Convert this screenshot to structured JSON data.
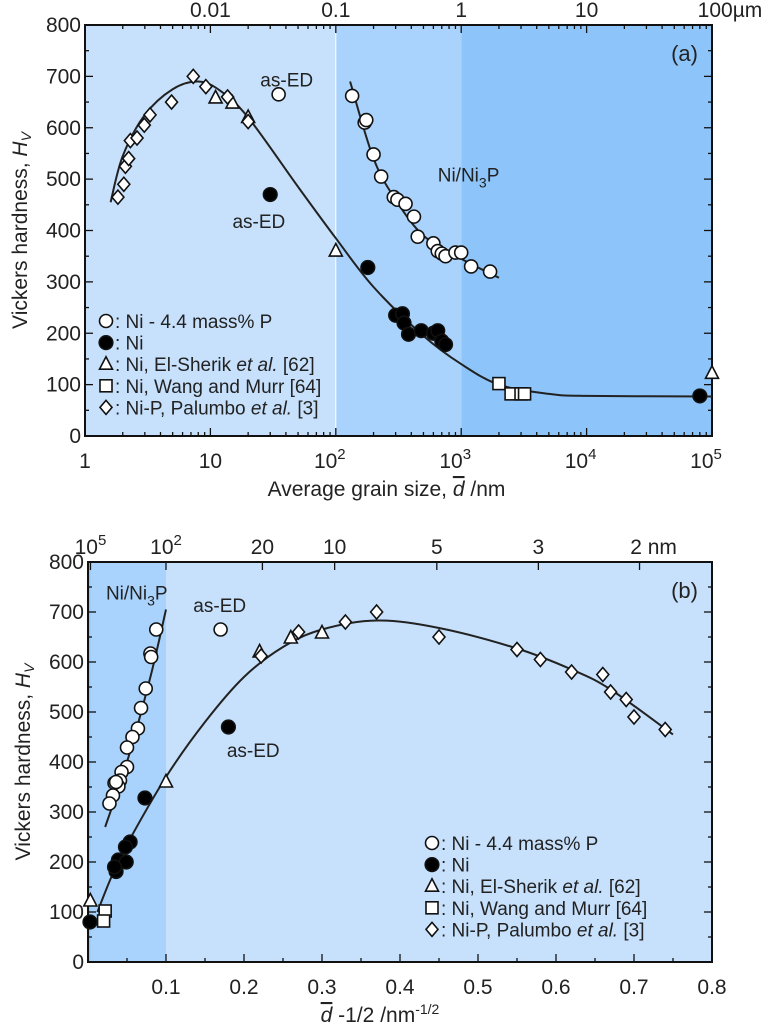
{
  "chart_data": [
    {
      "type": "scatter",
      "panel_label": "(a)",
      "xscale": "log",
      "xlim": [
        1,
        100000
      ],
      "ylim": [
        0,
        800
      ],
      "xlabel": {
        "pre": "Average grain size, ",
        "var": "d",
        "post": " /nm"
      },
      "ylabel": {
        "pre": "Vickers hardness, ",
        "var": "H",
        "sub": "V"
      },
      "x_ticks": [
        {
          "v": 1,
          "label": "1"
        },
        {
          "v": 10,
          "label": "10"
        },
        {
          "v": 100,
          "label": "10",
          "sup": "2"
        },
        {
          "v": 1000,
          "label": "10",
          "sup": "3"
        },
        {
          "v": 10000,
          "label": "10",
          "sup": "4"
        },
        {
          "v": 100000,
          "label": "10",
          "sup": "5"
        }
      ],
      "top_ticks": [
        {
          "v": 10,
          "label": "0.01"
        },
        {
          "v": 100,
          "label": "0.1"
        },
        {
          "v": 1000,
          "label": "1"
        },
        {
          "v": 10000,
          "label": "10"
        },
        {
          "v": 100000,
          "label": "100µm"
        }
      ],
      "y_ticks": [
        0,
        100,
        200,
        300,
        400,
        500,
        600,
        700,
        800
      ],
      "regions": [
        {
          "from": 1,
          "to": 100,
          "color": "#c7e1fc"
        },
        {
          "from": 100,
          "to": 1000,
          "color": "#a9d3fc"
        },
        {
          "from": 1000,
          "to": 100000,
          "color": "#8dc5fb"
        }
      ],
      "series": [
        {
          "name": "Ni - 4.4 mass% P",
          "marker": "open-circle",
          "points": [
            [
              35,
              665
            ],
            [
              135,
              662
            ],
            [
              170,
              610
            ],
            [
              175,
              615
            ],
            [
              200,
              548
            ],
            [
              230,
              505
            ],
            [
              290,
              465
            ],
            [
              310,
              460
            ],
            [
              360,
              452
            ],
            [
              420,
              427
            ],
            [
              450,
              388
            ],
            [
              600,
              375
            ],
            [
              650,
              360
            ],
            [
              700,
              355
            ],
            [
              750,
              350
            ],
            [
              900,
              357
            ],
            [
              1000,
              357
            ],
            [
              1200,
              330
            ],
            [
              1700,
              320
            ]
          ]
        },
        {
          "name": "Ni",
          "marker": "filled-circle",
          "points": [
            [
              30,
              470
            ],
            [
              180,
              328
            ],
            [
              300,
              235
            ],
            [
              340,
              238
            ],
            [
              350,
              220
            ],
            [
              380,
              198
            ],
            [
              480,
              205
            ],
            [
              600,
              200
            ],
            [
              650,
              205
            ],
            [
              700,
              185
            ],
            [
              750,
              178
            ],
            [
              80000,
              78
            ]
          ]
        },
        {
          "name": "Ni, El-Sherik et al. [62]",
          "marker": "triangle",
          "points": [
            [
              11,
              658
            ],
            [
              15,
              648
            ],
            [
              20,
              620
            ],
            [
              100,
              360
            ],
            [
              100000,
              122
            ]
          ]
        },
        {
          "name": "Ni, Wang and Murr [64]",
          "marker": "square",
          "points": [
            [
              2000,
              102
            ],
            [
              2500,
              82
            ],
            [
              3000,
              82
            ],
            [
              3200,
              82
            ]
          ]
        },
        {
          "name": "Ni-P, Palumbo et al. [3]",
          "marker": "diamond",
          "points": [
            [
              1.83,
              465
            ],
            [
              2.04,
              490
            ],
            [
              2.1,
              525
            ],
            [
              2.23,
              540
            ],
            [
              2.3,
              575
            ],
            [
              2.6,
              580
            ],
            [
              2.97,
              605
            ],
            [
              3.3,
              625
            ],
            [
              4.9,
              650
            ],
            [
              7.3,
              700
            ],
            [
              9.2,
              680
            ],
            [
              13.7,
              660
            ],
            [
              20,
              612
            ]
          ]
        }
      ],
      "curves": [
        {
          "name": "hall-petch-fit",
          "points": [
            [
              1.6,
              455
            ],
            [
              2,
              545
            ],
            [
              3,
              625
            ],
            [
              5,
              675
            ],
            [
              8,
              690
            ],
            [
              12,
              672
            ],
            [
              20,
              620
            ],
            [
              50,
              485
            ],
            [
              100,
              385
            ],
            [
              200,
              290
            ],
            [
              500,
              195
            ],
            [
              1000,
              140
            ],
            [
              2000,
              100
            ],
            [
              5000,
              82
            ],
            [
              10000,
              78
            ],
            [
              100000,
              77
            ]
          ]
        },
        {
          "name": "ni-ni3p-fit",
          "points": [
            [
              130,
              690
            ],
            [
              200,
              540
            ],
            [
              300,
              460
            ],
            [
              500,
              390
            ],
            [
              1000,
              345
            ],
            [
              2000,
              308
            ]
          ]
        }
      ],
      "annotations": [
        {
          "text": "as-ED",
          "at": [
            25,
            680
          ]
        },
        {
          "text": "as-ED",
          "at": [
            15,
            405
          ]
        },
        {
          "text": "Ni/Ni",
          "sub": "3",
          "post": "P",
          "at": [
            650,
            495
          ]
        }
      ],
      "legend": {
        "placement": "bottom-left",
        "entries": [
          {
            "marker": "open-circle",
            "pre": ": Ni - 4.4 mass% P",
            "it": "",
            "post": ""
          },
          {
            "marker": "filled-circle",
            "pre": ": Ni",
            "it": "",
            "post": ""
          },
          {
            "marker": "triangle",
            "pre": ": Ni, El-Sherik ",
            "it": "et al.",
            "post": " [62]"
          },
          {
            "marker": "square",
            "pre": ": Ni, Wang and Murr [64]",
            "it": "",
            "post": ""
          },
          {
            "marker": "diamond",
            "pre": ": Ni-P, Palumbo ",
            "it": "et al.",
            "post": " [3]"
          }
        ]
      }
    },
    {
      "type": "scatter",
      "panel_label": "(b)",
      "xscale": "linear",
      "xlim": [
        0,
        0.8
      ],
      "ylim": [
        0,
        800
      ],
      "xlabel": {
        "var": "d",
        "pre": " -1/2 /nm",
        "sup": "-1/2"
      },
      "ylabel": {
        "pre": "Vickers hardness, ",
        "var": "H",
        "sub": "V"
      },
      "x_ticks": [
        {
          "v": 0.1,
          "label": "0.1"
        },
        {
          "v": 0.2,
          "label": "0.2"
        },
        {
          "v": 0.3,
          "label": "0.3"
        },
        {
          "v": 0.4,
          "label": "0.4"
        },
        {
          "v": 0.5,
          "label": "0.5"
        },
        {
          "v": 0.6,
          "label": "0.6"
        },
        {
          "v": 0.7,
          "label": "0.7"
        },
        {
          "v": 0.8,
          "label": "0.8"
        }
      ],
      "top_ticks": [
        {
          "v": 0.00316,
          "label": "10",
          "sup": "5"
        },
        {
          "v": 0.1,
          "label": "10",
          "sup": "2"
        },
        {
          "v": 0.2236,
          "label": "20"
        },
        {
          "v": 0.3162,
          "label": "10"
        },
        {
          "v": 0.4472,
          "label": "5"
        },
        {
          "v": 0.5774,
          "label": "3"
        },
        {
          "v": 0.7071,
          "label": "2 nm"
        }
      ],
      "y_ticks": [
        0,
        100,
        200,
        300,
        400,
        500,
        600,
        700,
        800
      ],
      "regions": [
        {
          "from": 0,
          "to": 0.00316,
          "color": "#8dc5fb"
        },
        {
          "from": 0.00316,
          "to": 0.1,
          "color": "#a9d3fc"
        },
        {
          "from": 0.1,
          "to": 0.8,
          "color": "#c7e1fc"
        }
      ],
      "series": [
        {
          "name": "Ni - 4.4 mass% P",
          "marker": "open-circle",
          "points": [
            [
              0.17,
              665
            ],
            [
              0.0875,
              665
            ],
            [
              0.08,
              617
            ],
            [
              0.081,
              610
            ],
            [
              0.074,
              547
            ],
            [
              0.068,
              508
            ],
            [
              0.064,
              467
            ],
            [
              0.057,
              450
            ],
            [
              0.05,
              429
            ],
            [
              0.05,
              390
            ],
            [
              0.043,
              380
            ],
            [
              0.041,
              363
            ],
            [
              0.039,
              351
            ],
            [
              0.034,
              358
            ],
            [
              0.036,
              360
            ],
            [
              0.032,
              333
            ],
            [
              0.0275,
              317
            ]
          ]
        },
        {
          "name": "Ni",
          "marker": "filled-circle",
          "points": [
            [
              0.18,
              470
            ],
            [
              0.073,
              328
            ],
            [
              0.054,
              240
            ],
            [
              0.048,
              230
            ],
            [
              0.039,
              204
            ],
            [
              0.036,
              181
            ],
            [
              0.049,
              200
            ],
            [
              0.034,
              190
            ],
            [
              0.0025,
              80
            ]
          ]
        },
        {
          "name": "Ni, El-Sherik et al. [62]",
          "marker": "triangle",
          "points": [
            [
              0.3,
              658
            ],
            [
              0.26,
              648
            ],
            [
              0.22,
              620
            ],
            [
              0.1,
              360
            ],
            [
              0.003,
              122
            ]
          ]
        },
        {
          "name": "Ni, Wang and Murr [64]",
          "marker": "square",
          "points": [
            [
              0.022,
              102
            ],
            [
              0.02,
              82
            ]
          ]
        },
        {
          "name": "Ni-P, Palumbo et al. [3]",
          "marker": "diamond",
          "points": [
            [
              0.74,
              465
            ],
            [
              0.7,
              490
            ],
            [
              0.69,
              525
            ],
            [
              0.67,
              540
            ],
            [
              0.66,
              575
            ],
            [
              0.62,
              580
            ],
            [
              0.58,
              605
            ],
            [
              0.55,
              625
            ],
            [
              0.45,
              650
            ],
            [
              0.37,
              700
            ],
            [
              0.33,
              680
            ],
            [
              0.27,
              660
            ],
            [
              0.222,
              612
            ]
          ]
        }
      ],
      "curves": [
        {
          "name": "hall-petch-fit",
          "points": [
            [
              0.012,
              100
            ],
            [
              0.03,
              170
            ],
            [
              0.05,
              235
            ],
            [
              0.1,
              370
            ],
            [
              0.15,
              480
            ],
            [
              0.2,
              570
            ],
            [
              0.25,
              630
            ],
            [
              0.3,
              665
            ],
            [
              0.37,
              683
            ],
            [
              0.45,
              668
            ],
            [
              0.55,
              627
            ],
            [
              0.62,
              585
            ],
            [
              0.67,
              545
            ],
            [
              0.75,
              455
            ]
          ]
        },
        {
          "name": "ni-ni3p-fit",
          "points": [
            [
              0.022,
              270
            ],
            [
              0.05,
              400
            ],
            [
              0.08,
              570
            ],
            [
              0.1,
              705
            ]
          ]
        }
      ],
      "annotations": [
        {
          "text": "Ni/Ni",
          "sub": "3",
          "post": "P",
          "at": [
            0.023,
            725
          ]
        },
        {
          "text": "as-ED",
          "at": [
            0.135,
            700
          ]
        },
        {
          "text": "as-ED",
          "at": [
            0.178,
            410
          ]
        }
      ],
      "legend": {
        "placement": "bottom-right",
        "entries": [
          {
            "marker": "open-circle",
            "pre": ": Ni - 4.4 mass% P",
            "it": "",
            "post": ""
          },
          {
            "marker": "filled-circle",
            "pre": ": Ni",
            "it": "",
            "post": ""
          },
          {
            "marker": "triangle",
            "pre": ": Ni, El-Sherik ",
            "it": "et al.",
            "post": " [62]"
          },
          {
            "marker": "square",
            "pre": ": Ni, Wang and Murr [64]",
            "it": "",
            "post": ""
          },
          {
            "marker": "diamond",
            "pre": ": Ni-P, Palumbo ",
            "it": "et al.",
            "post": " [3]"
          }
        ]
      }
    }
  ]
}
